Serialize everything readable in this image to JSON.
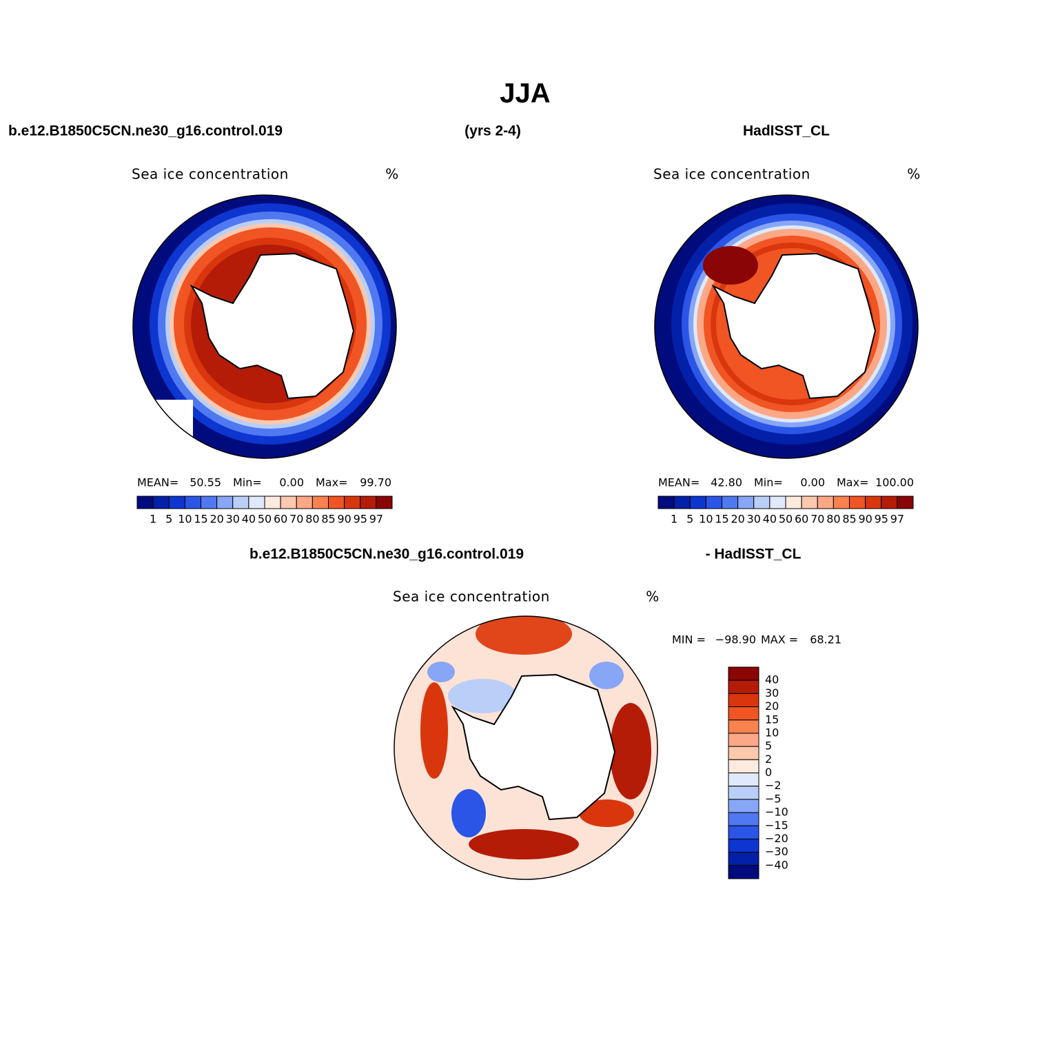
{
  "title": "JJA",
  "header": {
    "left": "b.e12.B1850C5CN.ne30_g16.control.019",
    "center": "(yrs 2-4)",
    "right": "HadISST_CL"
  },
  "panels": [
    {
      "title": "Sea ice concentration",
      "units": "%",
      "stats": [
        {
          "name": "MEAN=",
          "value": 50.55
        },
        {
          "name": "Min=",
          "value": {
            "value": 0,
            "label": "0.00"
          }
        },
        {
          "name": "Max=",
          "value": {
            "value": 99.7,
            "label": "99.70"
          }
        }
      ]
    },
    {
      "title": "Sea ice concentration",
      "units": "%",
      "stats": [
        {
          "name": "MEAN=",
          "value": {
            "value": 42.8,
            "label": "42.80"
          }
        },
        {
          "name": "Min=",
          "value": {
            "value": 0,
            "label": "0.00"
          }
        },
        {
          "name": "Max=",
          "value": {
            "value": 100,
            "label": "100.00"
          }
        }
      ]
    }
  ],
  "colorbar": {
    "levels": [
      1,
      5,
      10,
      15,
      20,
      30,
      40,
      50,
      60,
      70,
      80,
      85,
      90,
      95,
      97
    ],
    "colors": [
      "#000c7d",
      "#0320a8",
      "#0d35d0",
      "#2a55e6",
      "#5078f0",
      "#87a6f5",
      "#b9cff8",
      "#dfe9fb",
      "#feeade",
      "#fcc8ae",
      "#fca887",
      "#f9824f",
      "#f05523",
      "#d9360e",
      "#b41c08",
      "#8a0505"
    ]
  },
  "difference": {
    "header_left": "b.e12.B1850C5CN.ne30_g16.control.019",
    "header_right": "- HadISST_CL",
    "title": "Sea ice concentration",
    "units": "%",
    "stats": [
      {
        "name": "MIN =",
        "value": {
          "value": -98.9,
          "label": "−98.90"
        }
      },
      {
        "name": "MAX =",
        "value": 68.21
      }
    ],
    "colorbar": {
      "levels": [
        40,
        30,
        20,
        15,
        10,
        5,
        2,
        0,
        {
          "value": -2,
          "label": "−2"
        },
        {
          "value": -5,
          "label": "−5"
        },
        {
          "value": -10,
          "label": "−10"
        },
        {
          "value": -15,
          "label": "−15"
        },
        {
          "value": -20,
          "label": "−20"
        },
        {
          "value": -30,
          "label": "−30"
        },
        {
          "value": -40,
          "label": "−40"
        }
      ],
      "colors": [
        "#8a0505",
        "#b41c08",
        "#d9360e",
        "#f05523",
        "#f9824f",
        "#fca887",
        "#fcc8ae",
        "#feeade",
        "#dfe9fb",
        "#b9cff8",
        "#87a6f5",
        "#5078f0",
        "#2a55e6",
        "#0d35d0",
        "#0320a8",
        "#000c7d"
      ]
    }
  }
}
